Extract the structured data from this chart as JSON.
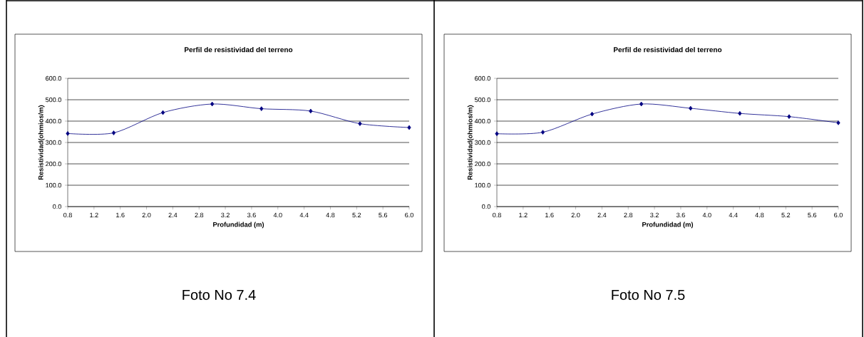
{
  "chart_data": [
    {
      "type": "line",
      "title": "Perfil de resistividad del terreno",
      "xlabel": "Profundidad (m)",
      "ylabel": "Resistividad(ohmios/m)",
      "x": [
        0.8,
        1.5,
        2.25,
        3.0,
        3.75,
        4.5,
        5.25,
        6.0
      ],
      "series": [
        {
          "color": "#000080",
          "values": [
            342,
            345,
            440,
            480,
            458,
            447,
            388,
            370
          ]
        }
      ],
      "xlim": [
        0.8,
        6.0
      ],
      "xticks": [
        {
          "value": 0.8,
          "label": "0.8"
        },
        {
          "value": 1.2,
          "label": "1.2"
        },
        {
          "value": 1.6,
          "label": "1.6"
        },
        {
          "value": 2.0,
          "label": "2.0"
        },
        {
          "value": 2.4,
          "label": "2.4"
        },
        {
          "value": 2.8,
          "label": "2.8"
        },
        {
          "value": 3.2,
          "label": "3.2"
        },
        {
          "value": 3.6,
          "label": "3.6"
        },
        {
          "value": 4.0,
          "label": "4.0"
        },
        {
          "value": 4.4,
          "label": "4.4"
        },
        {
          "value": 4.8,
          "label": "4.8"
        },
        {
          "value": 5.2,
          "label": "5.2"
        },
        {
          "value": 5.6,
          "label": "5.6"
        },
        {
          "value": 6.0,
          "label": "6.0"
        }
      ],
      "ylim": [
        0,
        600
      ],
      "yticks": [
        {
          "value": 0,
          "label": "0.0"
        },
        {
          "value": 100,
          "label": "100.0"
        },
        {
          "value": 200,
          "label": "200.0"
        },
        {
          "value": 300,
          "label": "300.0"
        },
        {
          "value": 400,
          "label": "400.0"
        },
        {
          "value": 500,
          "label": "500.0"
        },
        {
          "value": 600,
          "label": "600.0"
        }
      ],
      "grid": "y",
      "marker": "diamond",
      "line_style": "solid",
      "annotations": [
        "Foto No 7.4"
      ]
    },
    {
      "type": "line",
      "title": "Perfil de resistividad del terreno",
      "xlabel": "Profundidad (m)",
      "ylabel": "Resistividad(ohmios/m)",
      "x": [
        0.8,
        1.5,
        2.25,
        3.0,
        3.75,
        4.5,
        5.25,
        6.0
      ],
      "series": [
        {
          "color": "#000080",
          "values": [
            341,
            348,
            433,
            480,
            460,
            436,
            421,
            392
          ]
        }
      ],
      "xlim": [
        0.8,
        6.0
      ],
      "xticks": [
        {
          "value": 0.8,
          "label": "0.8"
        },
        {
          "value": 1.2,
          "label": "1.2"
        },
        {
          "value": 1.6,
          "label": "1.6"
        },
        {
          "value": 2.0,
          "label": "2.0"
        },
        {
          "value": 2.4,
          "label": "2.4"
        },
        {
          "value": 2.8,
          "label": "2.8"
        },
        {
          "value": 3.2,
          "label": "3.2"
        },
        {
          "value": 3.6,
          "label": "3.6"
        },
        {
          "value": 4.0,
          "label": "4.0"
        },
        {
          "value": 4.4,
          "label": "4.4"
        },
        {
          "value": 4.8,
          "label": "4.8"
        },
        {
          "value": 5.2,
          "label": "5.2"
        },
        {
          "value": 5.6,
          "label": "5.6"
        },
        {
          "value": 6.0,
          "label": "6.0"
        }
      ],
      "ylim": [
        0,
        600
      ],
      "yticks": [
        {
          "value": 0,
          "label": "0.0"
        },
        {
          "value": 100,
          "label": "100.0"
        },
        {
          "value": 200,
          "label": "200.0"
        },
        {
          "value": 300,
          "label": "300.0"
        },
        {
          "value": 400,
          "label": "400.0"
        },
        {
          "value": 500,
          "label": "500.0"
        },
        {
          "value": 600,
          "label": "600.0"
        }
      ],
      "grid": "y",
      "marker": "diamond",
      "line_style": "solid",
      "annotations": [
        "Foto No 7.5"
      ]
    }
  ]
}
